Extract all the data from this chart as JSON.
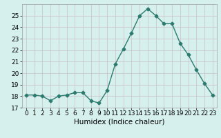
{
  "x": [
    0,
    1,
    2,
    3,
    4,
    5,
    6,
    7,
    8,
    9,
    10,
    11,
    12,
    13,
    14,
    15,
    16,
    17,
    18,
    19,
    20,
    21,
    22,
    23
  ],
  "y": [
    18.1,
    18.1,
    18.0,
    17.6,
    18.0,
    18.1,
    18.3,
    18.3,
    17.6,
    17.4,
    18.5,
    20.8,
    22.1,
    23.5,
    25.0,
    25.6,
    25.0,
    24.3,
    24.3,
    22.6,
    21.6,
    20.3,
    19.1,
    18.1
  ],
  "line_color": "#2d7a6e",
  "marker": "D",
  "marker_size": 2.5,
  "bg_color": "#d6f0ee",
  "grid_color": "#c8c0c8",
  "xlabel": "Humidex (Indice chaleur)",
  "xlim": [
    -0.5,
    23.5
  ],
  "ylim": [
    17,
    26
  ],
  "yticks": [
    17,
    18,
    19,
    20,
    21,
    22,
    23,
    24,
    25
  ],
  "xticks": [
    0,
    1,
    2,
    3,
    4,
    5,
    6,
    7,
    8,
    9,
    10,
    11,
    12,
    13,
    14,
    15,
    16,
    17,
    18,
    19,
    20,
    21,
    22,
    23
  ],
  "tick_fontsize": 6.5,
  "xlabel_fontsize": 7.5,
  "line_width": 1.0
}
